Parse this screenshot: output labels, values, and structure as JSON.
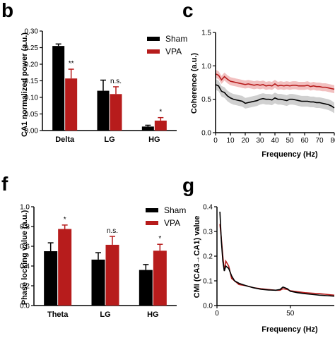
{
  "colors": {
    "sham": "#000000",
    "vpa": "#b71c1c",
    "vpa_band": "#f0b5b5",
    "sham_band": "#c8c8c8",
    "axis": "#000000"
  },
  "panels": {
    "b": {
      "letter": "b"
    },
    "c": {
      "letter": "c"
    },
    "f": {
      "letter": "f"
    },
    "g": {
      "letter": "g"
    }
  },
  "chart_data": [
    {
      "id": "b",
      "type": "bar",
      "ylabel": "CA1 normalized power (a.u.)",
      "xlabel": "",
      "categories": [
        "Delta",
        "LG",
        "HG"
      ],
      "ylim": [
        0,
        0.3
      ],
      "yticks": [
        "0.00",
        "0.05",
        "0.10",
        "0.15",
        "0.20",
        "0.25",
        "0.30"
      ],
      "series": [
        {
          "name": "Sham",
          "values": [
            0.255,
            0.12,
            0.012
          ],
          "errors": [
            0.006,
            0.032,
            0.004
          ]
        },
        {
          "name": "VPA",
          "values": [
            0.157,
            0.11,
            0.03
          ],
          "errors": [
            0.028,
            0.022,
            0.009
          ]
        }
      ],
      "significance": [
        "**",
        "n.s.",
        "*"
      ]
    },
    {
      "id": "c",
      "type": "line",
      "ylabel": "Coherence (a.u.)",
      "xlabel": "Frequency (Hz)",
      "xlim": [
        0,
        80
      ],
      "ylim": [
        0,
        1.5
      ],
      "xticks": [
        "0",
        "10",
        "20",
        "30",
        "40",
        "50",
        "60",
        "70",
        "80"
      ],
      "yticks": [
        "0.0",
        "0.5",
        "1.0",
        "1.5"
      ],
      "series": [
        {
          "name": "VPA",
          "x": [
            0,
            2,
            4,
            6,
            8,
            10,
            12,
            14,
            16,
            18,
            20,
            22,
            24,
            26,
            28,
            30,
            32,
            34,
            36,
            38,
            40,
            42,
            44,
            46,
            48,
            50,
            52,
            54,
            56,
            58,
            60,
            62,
            64,
            66,
            68,
            70,
            72,
            74,
            76,
            78,
            80
          ],
          "y": [
            0.88,
            0.86,
            0.79,
            0.84,
            0.8,
            0.77,
            0.76,
            0.75,
            0.74,
            0.73,
            0.72,
            0.73,
            0.72,
            0.71,
            0.72,
            0.71,
            0.72,
            0.7,
            0.71,
            0.7,
            0.73,
            0.7,
            0.71,
            0.7,
            0.71,
            0.7,
            0.71,
            0.71,
            0.7,
            0.7,
            0.7,
            0.71,
            0.69,
            0.7,
            0.69,
            0.69,
            0.68,
            0.68,
            0.67,
            0.66,
            0.65
          ],
          "band": 0.06
        },
        {
          "name": "Sham",
          "x": [
            0,
            2,
            4,
            6,
            8,
            10,
            12,
            14,
            16,
            18,
            20,
            22,
            24,
            26,
            28,
            30,
            32,
            34,
            36,
            38,
            40,
            42,
            44,
            46,
            48,
            50,
            52,
            54,
            56,
            58,
            60,
            62,
            64,
            66,
            68,
            70,
            72,
            74,
            76,
            78,
            80
          ],
          "y": [
            0.72,
            0.7,
            0.62,
            0.6,
            0.55,
            0.52,
            0.5,
            0.49,
            0.48,
            0.47,
            0.44,
            0.45,
            0.46,
            0.47,
            0.48,
            0.5,
            0.51,
            0.5,
            0.5,
            0.49,
            0.52,
            0.5,
            0.5,
            0.49,
            0.48,
            0.5,
            0.5,
            0.49,
            0.48,
            0.47,
            0.47,
            0.47,
            0.46,
            0.46,
            0.45,
            0.45,
            0.44,
            0.43,
            0.42,
            0.4,
            0.37
          ],
          "band": 0.08
        }
      ]
    },
    {
      "id": "f",
      "type": "bar",
      "ylabel": "Phase locking value (a.u.)",
      "xlabel": "",
      "categories": [
        "Theta",
        "LG",
        "HG"
      ],
      "ylim": [
        0,
        1.0
      ],
      "yticks": [
        "0.0",
        "0.2",
        "0.4",
        "0.6",
        "0.8",
        "1.0"
      ],
      "series": [
        {
          "name": "Sham",
          "values": [
            0.55,
            0.465,
            0.36
          ],
          "errors": [
            0.085,
            0.07,
            0.055
          ]
        },
        {
          "name": "VPA",
          "values": [
            0.775,
            0.615,
            0.555
          ],
          "errors": [
            0.04,
            0.085,
            0.065
          ]
        }
      ],
      "significance": [
        "*",
        "n.s.",
        "*"
      ]
    },
    {
      "id": "g",
      "type": "line",
      "ylabel": "CMI (CA3→CA1) value",
      "xlabel": "Frequency (Hz)",
      "xlim": [
        0,
        80
      ],
      "ylim": [
        0,
        0.4
      ],
      "xticks": [
        "0",
        "50"
      ],
      "yticks": [
        "0.0",
        "0.1",
        "0.2",
        "0.3",
        "0.4"
      ],
      "series": [
        {
          "name": "VPA",
          "x": [
            2,
            3,
            4,
            5,
            6,
            8,
            10,
            12,
            15,
            20,
            25,
            30,
            35,
            40,
            43,
            45,
            48,
            50,
            55,
            60,
            65,
            70,
            75,
            80
          ],
          "y": [
            0.33,
            0.27,
            0.2,
            0.14,
            0.18,
            0.16,
            0.11,
            0.1,
            0.085,
            0.08,
            0.072,
            0.068,
            0.065,
            0.062,
            0.062,
            0.068,
            0.065,
            0.06,
            0.056,
            0.052,
            0.05,
            0.048,
            0.045,
            0.042
          ]
        },
        {
          "name": "Sham",
          "x": [
            2,
            3,
            4,
            5,
            6,
            8,
            10,
            12,
            15,
            20,
            25,
            30,
            35,
            40,
            43,
            45,
            48,
            50,
            55,
            60,
            65,
            70,
            75,
            80
          ],
          "y": [
            0.38,
            0.26,
            0.18,
            0.14,
            0.16,
            0.15,
            0.12,
            0.1,
            0.09,
            0.08,
            0.072,
            0.066,
            0.063,
            0.062,
            0.065,
            0.075,
            0.068,
            0.058,
            0.052,
            0.048,
            0.045,
            0.042,
            0.04,
            0.038
          ]
        }
      ]
    }
  ]
}
